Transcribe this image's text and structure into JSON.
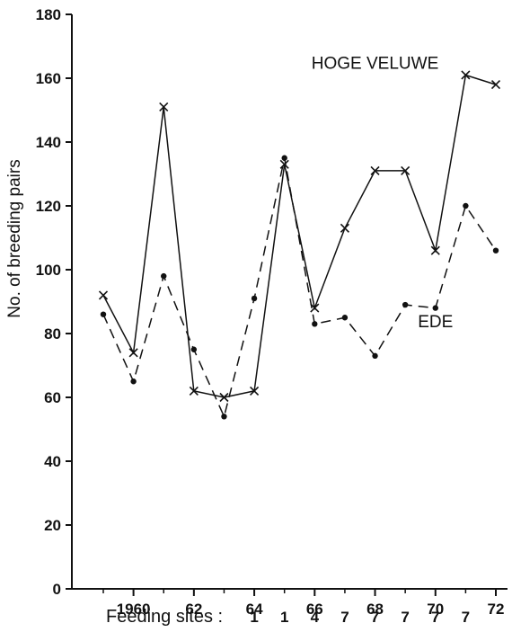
{
  "chart_data": {
    "type": "line",
    "ylabel": "No. of breeding pairs",
    "xlabel": "",
    "ylim": [
      0,
      180
    ],
    "xlim": [
      1958.6,
      1972.5
    ],
    "yticks": [
      0,
      20,
      40,
      60,
      80,
      100,
      120,
      140,
      160,
      180
    ],
    "xticks": [
      {
        "value": 1960,
        "label": "1960"
      },
      {
        "value": 1962,
        "label": "62"
      },
      {
        "value": 1964,
        "label": "64"
      },
      {
        "value": 1966,
        "label": "66"
      },
      {
        "value": 1968,
        "label": "68"
      },
      {
        "value": 1970,
        "label": "70"
      },
      {
        "value": 1972,
        "label": "72"
      }
    ],
    "series": [
      {
        "name": "HOGE VELUWE",
        "marker": "x",
        "line_style": "solid",
        "color": "#111111",
        "x": [
          1959,
          1960,
          1961,
          1962,
          1963,
          1964,
          1965,
          1966,
          1967,
          1968,
          1969,
          1970,
          1971,
          1972
        ],
        "y": [
          92,
          74,
          151,
          62,
          60,
          62,
          133,
          88,
          113,
          131,
          131,
          106,
          161,
          158
        ]
      },
      {
        "name": "EDE",
        "marker": "dot",
        "line_style": "dashed",
        "color": "#111111",
        "x": [
          1959,
          1960,
          1961,
          1962,
          1963,
          1964,
          1965,
          1966,
          1967,
          1968,
          1969,
          1970,
          1971,
          1972
        ],
        "y": [
          86,
          65,
          98,
          75,
          54,
          91,
          135,
          83,
          85,
          73,
          89,
          88,
          120,
          106
        ]
      }
    ],
    "annotations": [
      {
        "text": "HOGE VELUWE",
        "x": 1968.0,
        "y": 163
      },
      {
        "text": "EDE",
        "x": 1970.0,
        "y": 82
      }
    ],
    "feeding_sites": {
      "label": "Feeding sites :",
      "values": [
        {
          "x": 1964,
          "value": "1"
        },
        {
          "x": 1965,
          "value": "1"
        },
        {
          "x": 1966,
          "value": "4"
        },
        {
          "x": 1967,
          "value": "7"
        },
        {
          "x": 1968,
          "value": "7"
        },
        {
          "x": 1969,
          "value": "7"
        },
        {
          "x": 1970,
          "value": "7"
        },
        {
          "x": 1971,
          "value": "7"
        }
      ]
    },
    "grid": false,
    "legend": "none"
  }
}
